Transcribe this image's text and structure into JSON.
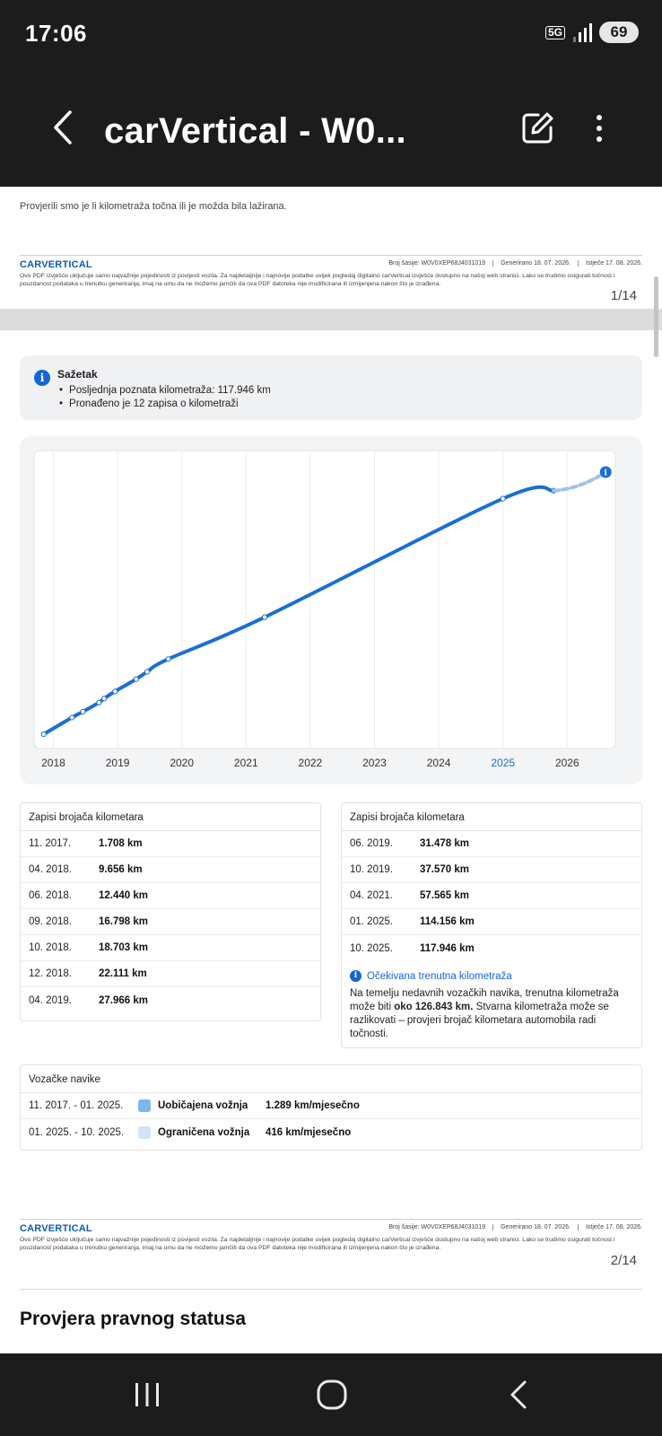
{
  "status_bar": {
    "time": "17:06",
    "network": "5G",
    "battery": "69"
  },
  "app_bar": {
    "title": "carVertical - W0..."
  },
  "page1": {
    "description": "Provjerili smo je li kilometraža točna ili je možda bila lažirana.",
    "page_number": "1/14"
  },
  "footer": {
    "logo": "CARVERTICAL",
    "vin": "Broj šasije: W0V0XEP68J4031019",
    "generated": "Generirano 18. 07. 2026.",
    "expires": "Istječe 17. 08. 2026.",
    "disclaimer": "Ovo PDF izvješće uključuje samo najvažnije pojedinosti iz povijesti vozila. Za najdetaljnije i najnovije podatke uvijek pogledaj digitalno carVertical izvješće dostupno na našoj web stranici. Lako se trudimo osigurati točnost i pouzdanost podataka u trenutku generiranja, imaj na umu da ne možemo jamčiti da ova PDF datoteka nije modificirana ili izmijenjena nakon što je izrađena."
  },
  "summary": {
    "title": "Sažetak",
    "items": [
      "Posljednja poznata kilometraža: 117.946 km",
      "Pronađeno je 12 zapisa o kilometraži"
    ]
  },
  "chart_data": {
    "type": "line",
    "title": "",
    "xlabel": "",
    "ylabel": "",
    "x_ticks": [
      "2018",
      "2019",
      "2020",
      "2021",
      "2022",
      "2023",
      "2024",
      "2025",
      "2026"
    ],
    "highlighted_tick": "2025",
    "xlim": [
      2017.7,
      2026.75
    ],
    "ylim": [
      1708,
      126843
    ],
    "grid": "vertical",
    "line_color": "#1a6fd1",
    "projection_color": "#9cc3ec",
    "series": [
      {
        "x": [
          2017.85,
          2018.29,
          2018.46,
          2018.71,
          2018.79,
          2018.96,
          2019.29,
          2019.46,
          2019.79,
          2021.29,
          2025.0,
          2025.79
        ],
        "y": [
          1708,
          9656,
          12440,
          16798,
          18703,
          22111,
          27966,
          31478,
          37570,
          57565,
          114156,
          117946
        ]
      }
    ],
    "projection": {
      "x": [
        2025.79,
        2026.6
      ],
      "y": [
        117946,
        126843
      ]
    }
  },
  "records_left": {
    "header": "Zapisi brojača kilometara",
    "rows": [
      {
        "date": "11. 2017.",
        "value": "1.708 km"
      },
      {
        "date": "04. 2018.",
        "value": "9.656 km"
      },
      {
        "date": "06. 2018.",
        "value": "12.440 km"
      },
      {
        "date": "09. 2018.",
        "value": "16.798 km"
      },
      {
        "date": "10. 2018.",
        "value": "18.703 km"
      },
      {
        "date": "12. 2018.",
        "value": "22.111 km"
      },
      {
        "date": "04. 2019.",
        "value": "27.966 km"
      }
    ]
  },
  "records_right": {
    "header": "Zapisi brojača kilometara",
    "rows": [
      {
        "date": "06. 2019.",
        "value": "31.478 km"
      },
      {
        "date": "10. 2019.",
        "value": "37.570 km"
      },
      {
        "date": "04. 2021.",
        "value": "57.565 km"
      },
      {
        "date": "01. 2025.",
        "value": "114.156 km"
      },
      {
        "date": "10. 2025.",
        "value": "117.946 km"
      }
    ],
    "expected_title": "Očekivana trenutna kilometraža",
    "expected_text_1": "Na temelju nedavnih vozačkih navika, trenutna kilometraža može biti ",
    "expected_bold": "oko 126.843 km.",
    "expected_text_2": " Stvarna kilometraža može se razlikovati – provjeri brojač kilometara automobila radi točnosti."
  },
  "habits": {
    "header": "Vozačke navike",
    "rows": [
      {
        "period": "11. 2017. - 01. 2025.",
        "label": "Uobičajena vožnja",
        "rate": "1.289 km/mjesečno",
        "color": "#7bb8f0"
      },
      {
        "period": "01. 2025. - 10. 2025.",
        "label": "Ograničena vožnja",
        "rate": "416 km/mjesečno",
        "color": "#cfe4f8"
      }
    ]
  },
  "page2": {
    "page_number": "2/14"
  },
  "page3": {
    "title": "Provjera pravnog statusa"
  }
}
